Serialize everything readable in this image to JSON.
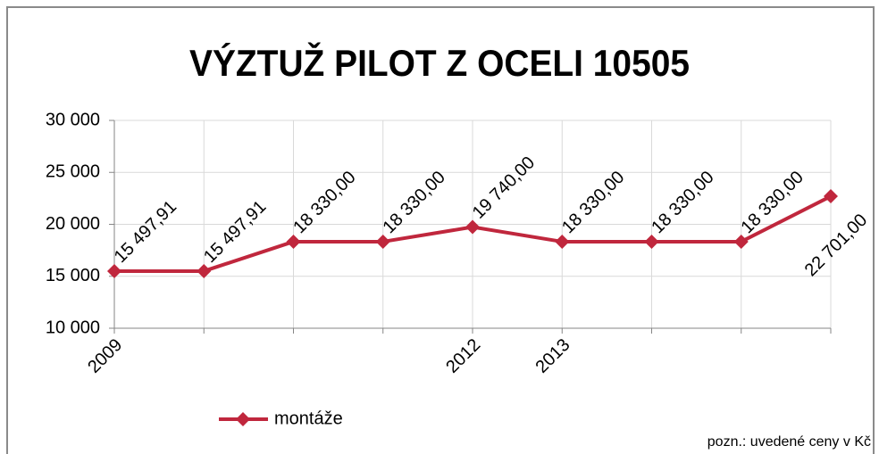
{
  "chart_data": {
    "type": "line",
    "title": "VÝZTUŽ PILOT Z OCELI 10505",
    "categories": [
      "2009",
      null,
      null,
      null,
      "2012",
      "2013",
      null,
      null,
      null
    ],
    "series": [
      {
        "name": "montáže",
        "color": "#c0273d",
        "values": [
          15497.91,
          15497.91,
          18330,
          18330,
          19740,
          18330,
          18330,
          18330,
          22701
        ],
        "value_labels": [
          "15 497,91",
          "15 497,91",
          "18 330,00",
          "18 330,00",
          "19 740,00",
          "18 330,00",
          "18 330,00",
          "18 330,00",
          "22 701,00"
        ]
      }
    ],
    "ylim": [
      10000,
      30000
    ],
    "yticks": [
      {
        "value": 10000,
        "label": "10 000"
      },
      {
        "value": 15000,
        "label": "15 000"
      },
      {
        "value": 20000,
        "label": "20 000"
      },
      {
        "value": 25000,
        "label": "25 000"
      },
      {
        "value": 30000,
        "label": "30 000"
      }
    ],
    "grid": true,
    "annotation": "pozn.: uvedené ceny v Kč"
  }
}
